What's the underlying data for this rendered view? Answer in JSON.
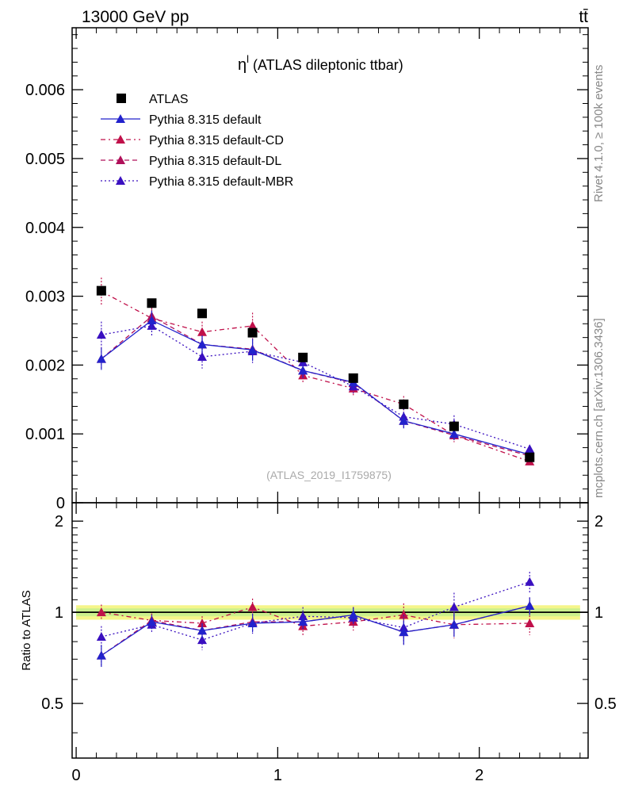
{
  "header": {
    "left": "13000 GeV pp",
    "right": "tt̄"
  },
  "side_text": {
    "rivet": "Rivet 4.1.0, ≥ 100k events",
    "mcplots": "mcplots.cern.ch [arXiv:1306.3436]"
  },
  "chart_data": [
    {
      "type": "line",
      "title": "η",
      "title_sup": "l",
      "title_rest": " (ATLAS dileptonic ttbar)",
      "watermark": "(ATLAS_2019_I1759875)",
      "xlim": [
        -0.02,
        2.54
      ],
      "ylim": [
        0,
        0.0069
      ],
      "yticks": [
        0,
        0.001,
        0.002,
        0.003,
        0.004,
        0.005,
        0.006
      ],
      "ytick_labels": [
        "0",
        "0.001",
        "0.002",
        "0.003",
        "0.004",
        "0.005",
        "0.006"
      ],
      "x": [
        0.125,
        0.375,
        0.625,
        0.875,
        1.125,
        1.375,
        1.625,
        1.875,
        2.25
      ],
      "data": {
        "name": "ATLAS",
        "color": "#000000",
        "values": [
          0.00308,
          0.0029,
          0.00275,
          0.00247,
          0.00211,
          0.00181,
          0.00143,
          0.00111,
          0.00066
        ],
        "errors": [
          7e-05,
          6e-05,
          6e-05,
          6e-05,
          5e-05,
          4e-05,
          4e-05,
          3e-05,
          2e-05
        ]
      },
      "series": [
        {
          "name": "Pythia 8.315 default",
          "color": "#2222cc",
          "dash": "",
          "values": [
            0.00209,
            0.00265,
            0.0023,
            0.00222,
            0.00192,
            0.00175,
            0.00119,
            0.001,
            0.0007
          ],
          "errors": [
            0.00016,
            0.00014,
            0.00013,
            0.00016,
            0.00011,
            0.0001,
            0.00011,
            9e-05,
            5e-05
          ]
        },
        {
          "name": "Pythia 8.315 default-CD",
          "color": "#c0104a",
          "dash": "6,4,2,4",
          "values": [
            0.00307,
            0.00268,
            0.00248,
            0.00257,
            0.00185,
            0.00166,
            0.00143,
            0.00098,
            0.0006
          ],
          "errors": [
            0.0002,
            0.00015,
            0.00015,
            0.00019,
            0.00011,
            0.00011,
            0.00012,
            0.0001,
            5e-05
          ]
        },
        {
          "name": "Pythia 8.315 default-DL",
          "color": "#b0105a",
          "dash": "6,4",
          "values": [
            0.00209,
            0.00271,
            0.0023,
            0.00223,
            0.00192,
            0.00174,
            0.00119,
            0.00098,
            0.00068
          ],
          "errors": [
            0.00016,
            0.00014,
            0.00013,
            0.00016,
            0.00011,
            0.0001,
            0.00011,
            9e-05,
            5e-05
          ]
        },
        {
          "name": "Pythia 8.315 default-MBR",
          "color": "#3a10c0",
          "dash": "2,3",
          "values": [
            0.00244,
            0.00257,
            0.00212,
            0.0022,
            0.00204,
            0.00169,
            0.00125,
            0.00114,
            0.00078
          ],
          "errors": [
            0.00019,
            0.00016,
            0.00017,
            0.00017,
            0.00012,
            0.0001,
            0.00012,
            0.00013,
            6e-05
          ]
        }
      ]
    },
    {
      "type": "line",
      "ylabel": "Ratio to ATLAS",
      "xlim": [
        -0.02,
        2.54
      ],
      "ylim": [
        0.33,
        2.3
      ],
      "yticks": [
        0.5,
        1,
        2
      ],
      "ytick_labels": [
        "0.5",
        "1",
        "2"
      ],
      "xticks": [
        0,
        1,
        2
      ],
      "xtick_labels": [
        "0",
        "1",
        "2"
      ],
      "band": {
        "inner_color": "#ccf08c",
        "outer_color": "#f5f58a",
        "inner": 0.03,
        "outer": 0.055
      },
      "x": [
        0.125,
        0.375,
        0.625,
        0.875,
        1.125,
        1.375,
        1.625,
        1.875,
        2.25
      ],
      "series": [
        {
          "name": "Pythia 8.315 default",
          "color": "#2222cc",
          "dash": "",
          "values": [
            0.72,
            0.93,
            0.87,
            0.92,
            0.93,
            0.98,
            0.86,
            0.91,
            1.05
          ],
          "errors": [
            0.06,
            0.05,
            0.05,
            0.06,
            0.05,
            0.06,
            0.08,
            0.08,
            0.07
          ]
        },
        {
          "name": "Pythia 8.315 default-CD",
          "color": "#c0104a",
          "dash": "6,4,2,4",
          "values": [
            1.0,
            0.94,
            0.92,
            1.04,
            0.9,
            0.93,
            0.98,
            0.91,
            0.92
          ],
          "errors": [
            0.06,
            0.05,
            0.05,
            0.07,
            0.06,
            0.06,
            0.09,
            0.09,
            0.08
          ]
        },
        {
          "name": "Pythia 8.315 default-DL",
          "color": "#b0105a",
          "dash": "6,4",
          "values": [
            0.72,
            0.94,
            0.87,
            0.93,
            0.93,
            0.98,
            0.86,
            0.91,
            1.05
          ],
          "errors": [
            0.06,
            0.05,
            0.05,
            0.06,
            0.05,
            0.06,
            0.08,
            0.08,
            0.07
          ]
        },
        {
          "name": "Pythia 8.315 default-MBR",
          "color": "#3a10c0",
          "dash": "2,3",
          "values": [
            0.83,
            0.91,
            0.81,
            0.92,
            0.97,
            0.96,
            0.89,
            1.04,
            1.26
          ],
          "errors": [
            0.07,
            0.05,
            0.06,
            0.07,
            0.07,
            0.06,
            0.09,
            0.12,
            0.1
          ]
        }
      ]
    }
  ]
}
